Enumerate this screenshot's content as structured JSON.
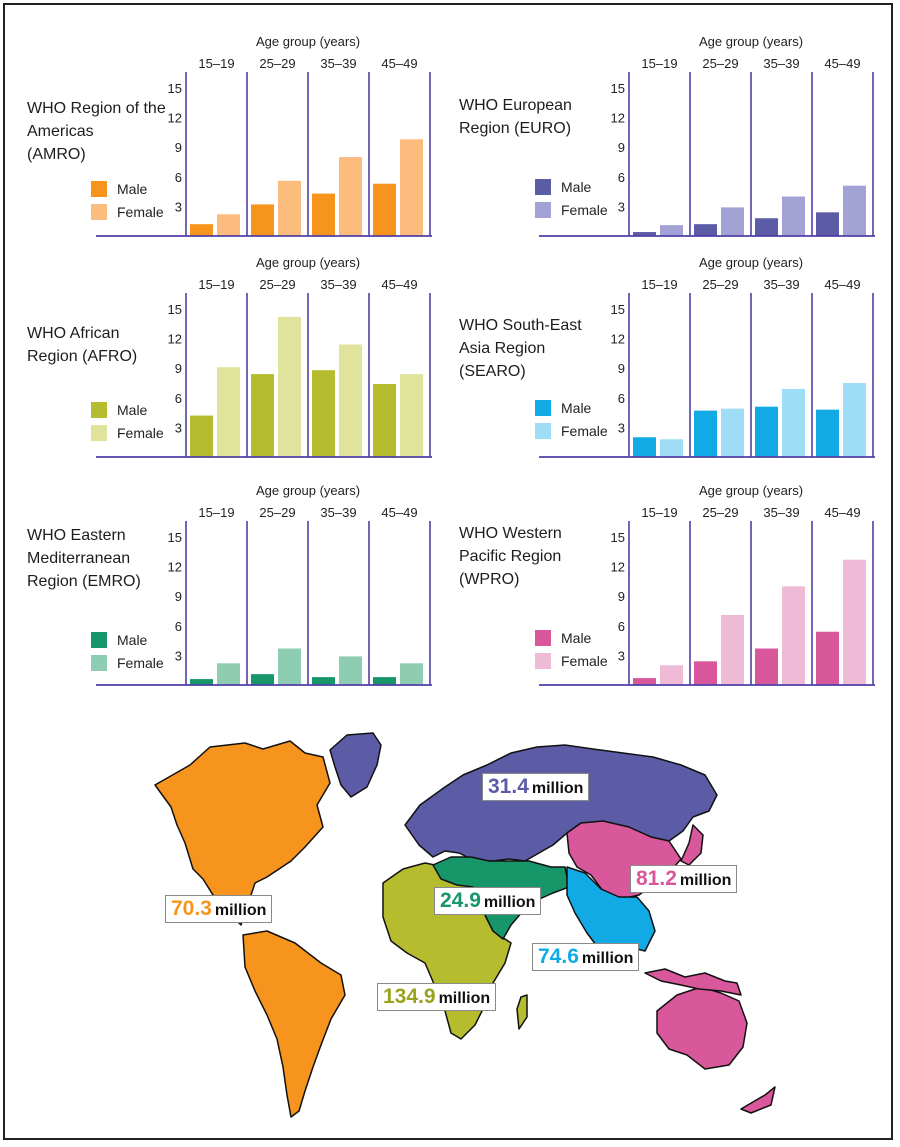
{
  "chart_data": [
    {
      "type": "bar",
      "title": "WHO Region of the Americas (AMRO)",
      "xlabel": "Age group (years)",
      "categories": [
        "15–19",
        "25–29",
        "35–39",
        "45–49"
      ],
      "y_ticks": [
        "3",
        "6",
        "9",
        "12",
        "15"
      ],
      "ylim": [
        0,
        15
      ],
      "series": [
        {
          "name": "Male",
          "values": [
            1.2,
            3.2,
            4.3,
            5.3
          ]
        },
        {
          "name": "Female",
          "values": [
            2.2,
            5.6,
            8.0,
            9.8
          ]
        }
      ]
    },
    {
      "type": "bar",
      "title": "WHO European Region (EURO)",
      "xlabel": "Age group (years)",
      "categories": [
        "15–19",
        "25–29",
        "35–39",
        "45–49"
      ],
      "y_ticks": [
        "3",
        "6",
        "9",
        "12",
        "15"
      ],
      "ylim": [
        0,
        15
      ],
      "series": [
        {
          "name": "Male",
          "values": [
            0.4,
            1.2,
            1.8,
            2.4
          ]
        },
        {
          "name": "Female",
          "values": [
            1.1,
            2.9,
            4.0,
            5.1
          ]
        }
      ]
    },
    {
      "type": "bar",
      "title": "WHO African Region (AFRO)",
      "xlabel": "Age group (years)",
      "categories": [
        "15–19",
        "25–29",
        "35–39",
        "45–49"
      ],
      "y_ticks": [
        "3",
        "6",
        "9",
        "12",
        "15"
      ],
      "ylim": [
        0,
        15
      ],
      "series": [
        {
          "name": "Male",
          "values": [
            4.2,
            8.4,
            8.8,
            7.4
          ]
        },
        {
          "name": "Female",
          "values": [
            9.1,
            14.2,
            11.4,
            8.4
          ]
        }
      ]
    },
    {
      "type": "bar",
      "title": "WHO South-East Asia Region (SEARO)",
      "xlabel": "Age group (years)",
      "categories": [
        "15–19",
        "25–29",
        "35–39",
        "45–49"
      ],
      "y_ticks": [
        "3",
        "6",
        "9",
        "12",
        "15"
      ],
      "ylim": [
        0,
        15
      ],
      "series": [
        {
          "name": "Male",
          "values": [
            2.0,
            4.7,
            5.1,
            4.8
          ]
        },
        {
          "name": "Female",
          "values": [
            1.8,
            4.9,
            6.9,
            7.5
          ]
        }
      ]
    },
    {
      "type": "bar",
      "title": "WHO Eastern Mediterranean Region (EMRO)",
      "xlabel": "Age group (years)",
      "categories": [
        "15–19",
        "25–29",
        "35–39",
        "45–49"
      ],
      "y_ticks": [
        "3",
        "6",
        "9",
        "12",
        "15"
      ],
      "ylim": [
        0,
        15
      ],
      "series": [
        {
          "name": "Male",
          "values": [
            0.6,
            1.1,
            0.8,
            0.8
          ]
        },
        {
          "name": "Female",
          "values": [
            2.2,
            3.7,
            2.9,
            2.2
          ]
        }
      ]
    },
    {
      "type": "bar",
      "title": "WHO Western Pacific Region (WPRO)",
      "xlabel": "Age group (years)",
      "categories": [
        "15–19",
        "25–29",
        "35–39",
        "45–49"
      ],
      "y_ticks": [
        "3",
        "6",
        "9",
        "12",
        "15"
      ],
      "ylim": [
        0,
        15
      ],
      "series": [
        {
          "name": "Male",
          "values": [
            0.7,
            2.4,
            3.7,
            5.4
          ]
        },
        {
          "name": "Female",
          "values": [
            2.0,
            7.1,
            10.0,
            12.7
          ]
        }
      ]
    }
  ],
  "panels": [
    {
      "title": "WHO Region of the\nAmericas\n(AMRO)",
      "male_label": "Male",
      "female_label": "Female",
      "male_color": "#f7941d",
      "female_color": "#fbbc7d"
    },
    {
      "title": "WHO European\nRegion (EURO)",
      "male_label": "Male",
      "female_label": "Female",
      "male_color": "#5b5ba6",
      "female_color": "#a2a2d4"
    },
    {
      "title": "WHO African\nRegion (AFRO)",
      "male_label": "Male",
      "female_label": "Female",
      "male_color": "#b5bd2f",
      "female_color": "#dfe39c"
    },
    {
      "title": "WHO South-East\nAsia Region\n(SEARO)",
      "male_label": "Male",
      "female_label": "Female",
      "male_color": "#12aae4",
      "female_color": "#9fdcf5"
    },
    {
      "title": "WHO Eastern\nMediterranean\nRegion (EMRO)",
      "male_label": "Male",
      "female_label": "Female",
      "male_color": "#17966a",
      "female_color": "#8fcdb2"
    },
    {
      "title": "WHO Western\nPacific Region\n(WPRO)",
      "male_label": "Male",
      "female_label": "Female",
      "male_color": "#d9579b",
      "female_color": "#eebad6"
    }
  ],
  "colors": {
    "axis": "#4f3fa6"
  },
  "map": {
    "labels": [
      {
        "value": "70.3",
        "unit": "million",
        "color": "#f7941d"
      },
      {
        "value": "31.4",
        "unit": "million",
        "color": "#5b5ba6"
      },
      {
        "value": "81.2",
        "unit": "million",
        "color": "#d9579b"
      },
      {
        "value": "24.9",
        "unit": "million",
        "color": "#17966a"
      },
      {
        "value": "74.6",
        "unit": "million",
        "color": "#12aae4"
      },
      {
        "value": "134.9",
        "unit": "million",
        "color": "#9aa31f"
      }
    ],
    "continents": [
      {
        "name": "north-america",
        "color": "#f7941d"
      },
      {
        "name": "greenland",
        "color": "#5b5ba6"
      },
      {
        "name": "south-america",
        "color": "#f7941d"
      },
      {
        "name": "europe-russia",
        "color": "#5b5ba6"
      },
      {
        "name": "china-east-asia",
        "color": "#d9579b"
      },
      {
        "name": "africa",
        "color": "#b5bd2f"
      },
      {
        "name": "middle-east",
        "color": "#17966a"
      },
      {
        "name": "south-asia",
        "color": "#12aae4"
      },
      {
        "name": "australia",
        "color": "#d9579b"
      }
    ]
  }
}
